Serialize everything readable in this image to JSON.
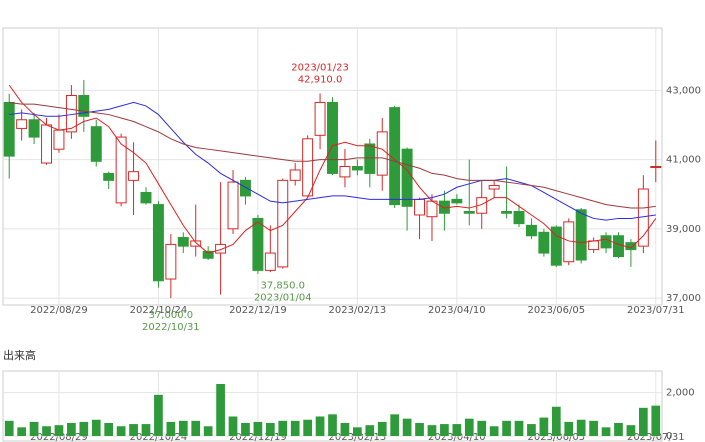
{
  "chart_data": [
    {
      "type": "candlestick",
      "categories": [
        null,
        null,
        null,
        null,
        "2022/08/29",
        null,
        null,
        null,
        null,
        null,
        null,
        null,
        "2022/10/24",
        null,
        null,
        null,
        null,
        null,
        null,
        null,
        "2022/12/19",
        null,
        null,
        null,
        null,
        null,
        null,
        null,
        "2023/02/13",
        null,
        null,
        null,
        null,
        null,
        null,
        null,
        "2023/04/10",
        null,
        null,
        null,
        null,
        null,
        null,
        null,
        "2023/06/05",
        null,
        null,
        null,
        null,
        null,
        null,
        null,
        "2023/07/31"
      ],
      "open": [
        42650,
        41900,
        42150,
        40900,
        41300,
        41800,
        42850,
        41950,
        40600,
        39750,
        40400,
        40050,
        39700,
        37550,
        38750,
        38500,
        38350,
        38300,
        39000,
        40400,
        39300,
        37800,
        37900,
        40400,
        39950,
        41700,
        42650,
        40500,
        40800,
        41450,
        40550,
        42500,
        41300,
        39400,
        39350,
        39800,
        39850,
        39500,
        39450,
        40150,
        39500,
        39500,
        39100,
        38900,
        39050,
        38050,
        39550,
        38400,
        38800,
        38800,
        38600,
        38500,
        40800
      ],
      "high": [
        42900,
        42450,
        42350,
        42200,
        42300,
        43150,
        43300,
        42150,
        40650,
        41750,
        41500,
        40200,
        39800,
        38850,
        38900,
        39700,
        38500,
        40350,
        40700,
        40500,
        39400,
        39100,
        40450,
        40900,
        41700,
        42910,
        42800,
        41300,
        41000,
        41600,
        42200,
        42550,
        41350,
        39900,
        40000,
        40100,
        40000,
        41000,
        40400,
        40400,
        40800,
        39700,
        39300,
        39000,
        39100,
        39300,
        39600,
        38750,
        38900,
        38900,
        38700,
        40550,
        41550
      ],
      "low": [
        40450,
        41550,
        41450,
        40850,
        41200,
        41600,
        41800,
        40800,
        40150,
        39650,
        39400,
        39700,
        37300,
        37000,
        38300,
        38200,
        38100,
        37100,
        38850,
        39700,
        37700,
        37750,
        37850,
        40250,
        39900,
        41300,
        40550,
        40200,
        40550,
        40200,
        40100,
        39600,
        38950,
        38700,
        38650,
        38950,
        39700,
        39100,
        39000,
        39900,
        39300,
        39050,
        38700,
        38200,
        37900,
        37950,
        38000,
        38300,
        38300,
        38150,
        37900,
        38300,
        40350
      ],
      "close": [
        41100,
        42150,
        41650,
        42000,
        41850,
        42850,
        42250,
        40950,
        40400,
        41650,
        40650,
        39750,
        37500,
        38550,
        38500,
        38650,
        38150,
        38550,
        40350,
        39950,
        37800,
        38300,
        40400,
        40700,
        41600,
        42650,
        40600,
        40800,
        40700,
        40600,
        41800,
        39700,
        39650,
        39850,
        39800,
        39450,
        39750,
        39450,
        39900,
        40250,
        39450,
        39150,
        38800,
        38300,
        37950,
        39200,
        38100,
        38650,
        38450,
        38200,
        38400,
        40150,
        40800
      ],
      "up_color": "#d42a2a",
      "down_color": "#2e9a3a",
      "series": [
        {
          "color": "#e02020",
          "values": [
            43150,
            42650,
            42300,
            42000,
            41850,
            41900,
            42100,
            42200,
            41950,
            41450,
            41200,
            40900,
            40300,
            39700,
            39100,
            38600,
            38300,
            38400,
            38550,
            38950,
            39200,
            38950,
            39100,
            39500,
            39900,
            40700,
            41400,
            41500,
            41400,
            41400,
            41300,
            41000,
            40700,
            40200,
            39800,
            39600,
            39650,
            39600,
            39700,
            39900,
            39900,
            39650,
            39400,
            39150,
            38800,
            38650,
            38600,
            38650,
            38700,
            38550,
            38450,
            38800,
            39300
          ]
        },
        {
          "color": "#2c2ce0",
          "values": [
            42300,
            42350,
            42300,
            42250,
            42250,
            42300,
            42350,
            42400,
            42450,
            42550,
            42650,
            42550,
            42300,
            41900,
            41500,
            41150,
            40900,
            40600,
            40400,
            40200,
            40000,
            39800,
            39750,
            39800,
            39850,
            39900,
            39950,
            39950,
            39900,
            39850,
            39850,
            39850,
            39850,
            39850,
            39900,
            40000,
            40200,
            40300,
            40400,
            40400,
            40450,
            40350,
            40250,
            40050,
            39850,
            39650,
            39450,
            39300,
            39250,
            39300,
            39300,
            39350,
            39400
          ]
        },
        {
          "color": "#9c3a3a",
          "values": [
            42650,
            42600,
            42600,
            42550,
            42500,
            42450,
            42400,
            42350,
            42300,
            42200,
            42100,
            41950,
            41800,
            41600,
            41450,
            41350,
            41300,
            41250,
            41200,
            41150,
            41100,
            41050,
            41000,
            40950,
            40950,
            41000,
            41000,
            41000,
            41050,
            41050,
            41050,
            40950,
            40850,
            40750,
            40600,
            40550,
            40450,
            40400,
            40400,
            40400,
            40350,
            40300,
            40250,
            40200,
            40100,
            40000,
            39900,
            39800,
            39700,
            39650,
            39600,
            39600,
            39650
          ]
        }
      ],
      "ylim": [
        36800,
        44800
      ],
      "yticks": [
        {
          "value": 37000,
          "label": "37,000"
        },
        {
          "value": 39000,
          "label": "39,000"
        },
        {
          "value": 41000,
          "label": "41,000"
        },
        {
          "value": 43000,
          "label": "43,000"
        }
      ],
      "annotations": [
        {
          "date": "2023/01/23",
          "label": "42,910.0",
          "value": 42910,
          "color": "#d42a2a"
        },
        {
          "date": "2022/10/31",
          "label": "37,000.0",
          "value": 37000,
          "color": "#5a9a4a"
        },
        {
          "date": "2023/01/04",
          "label": "37,850.0",
          "value": 37850,
          "color": "#5a9a4a"
        }
      ]
    },
    {
      "type": "bar",
      "title": "出来高",
      "color": "#2e9a3a",
      "categories": [
        null,
        null,
        null,
        null,
        "2022/08/29",
        null,
        null,
        null,
        null,
        null,
        null,
        null,
        "2022/10/24",
        null,
        null,
        null,
        null,
        null,
        null,
        null,
        "2022/12/19",
        null,
        null,
        null,
        null,
        null,
        null,
        null,
        "2023/02/13",
        null,
        null,
        null,
        null,
        null,
        null,
        null,
        "2023/04/10",
        null,
        null,
        null,
        null,
        null,
        null,
        null,
        "2023/06/05",
        null,
        null,
        null,
        null,
        null,
        null,
        null,
        "2023/07/31"
      ],
      "values": [
        700,
        400,
        650,
        450,
        500,
        600,
        650,
        750,
        600,
        450,
        550,
        550,
        1900,
        650,
        700,
        700,
        450,
        2400,
        900,
        600,
        650,
        600,
        700,
        700,
        750,
        900,
        1000,
        600,
        400,
        500,
        650,
        1000,
        800,
        600,
        500,
        550,
        550,
        800,
        700,
        450,
        700,
        700,
        550,
        850,
        1350,
        650,
        750,
        700,
        400,
        600,
        500,
        1300,
        1400
      ],
      "ylim": [
        0,
        3000
      ],
      "yticks": [
        0,
        {
          "value": 2000,
          "label": "2,000"
        }
      ]
    }
  ]
}
